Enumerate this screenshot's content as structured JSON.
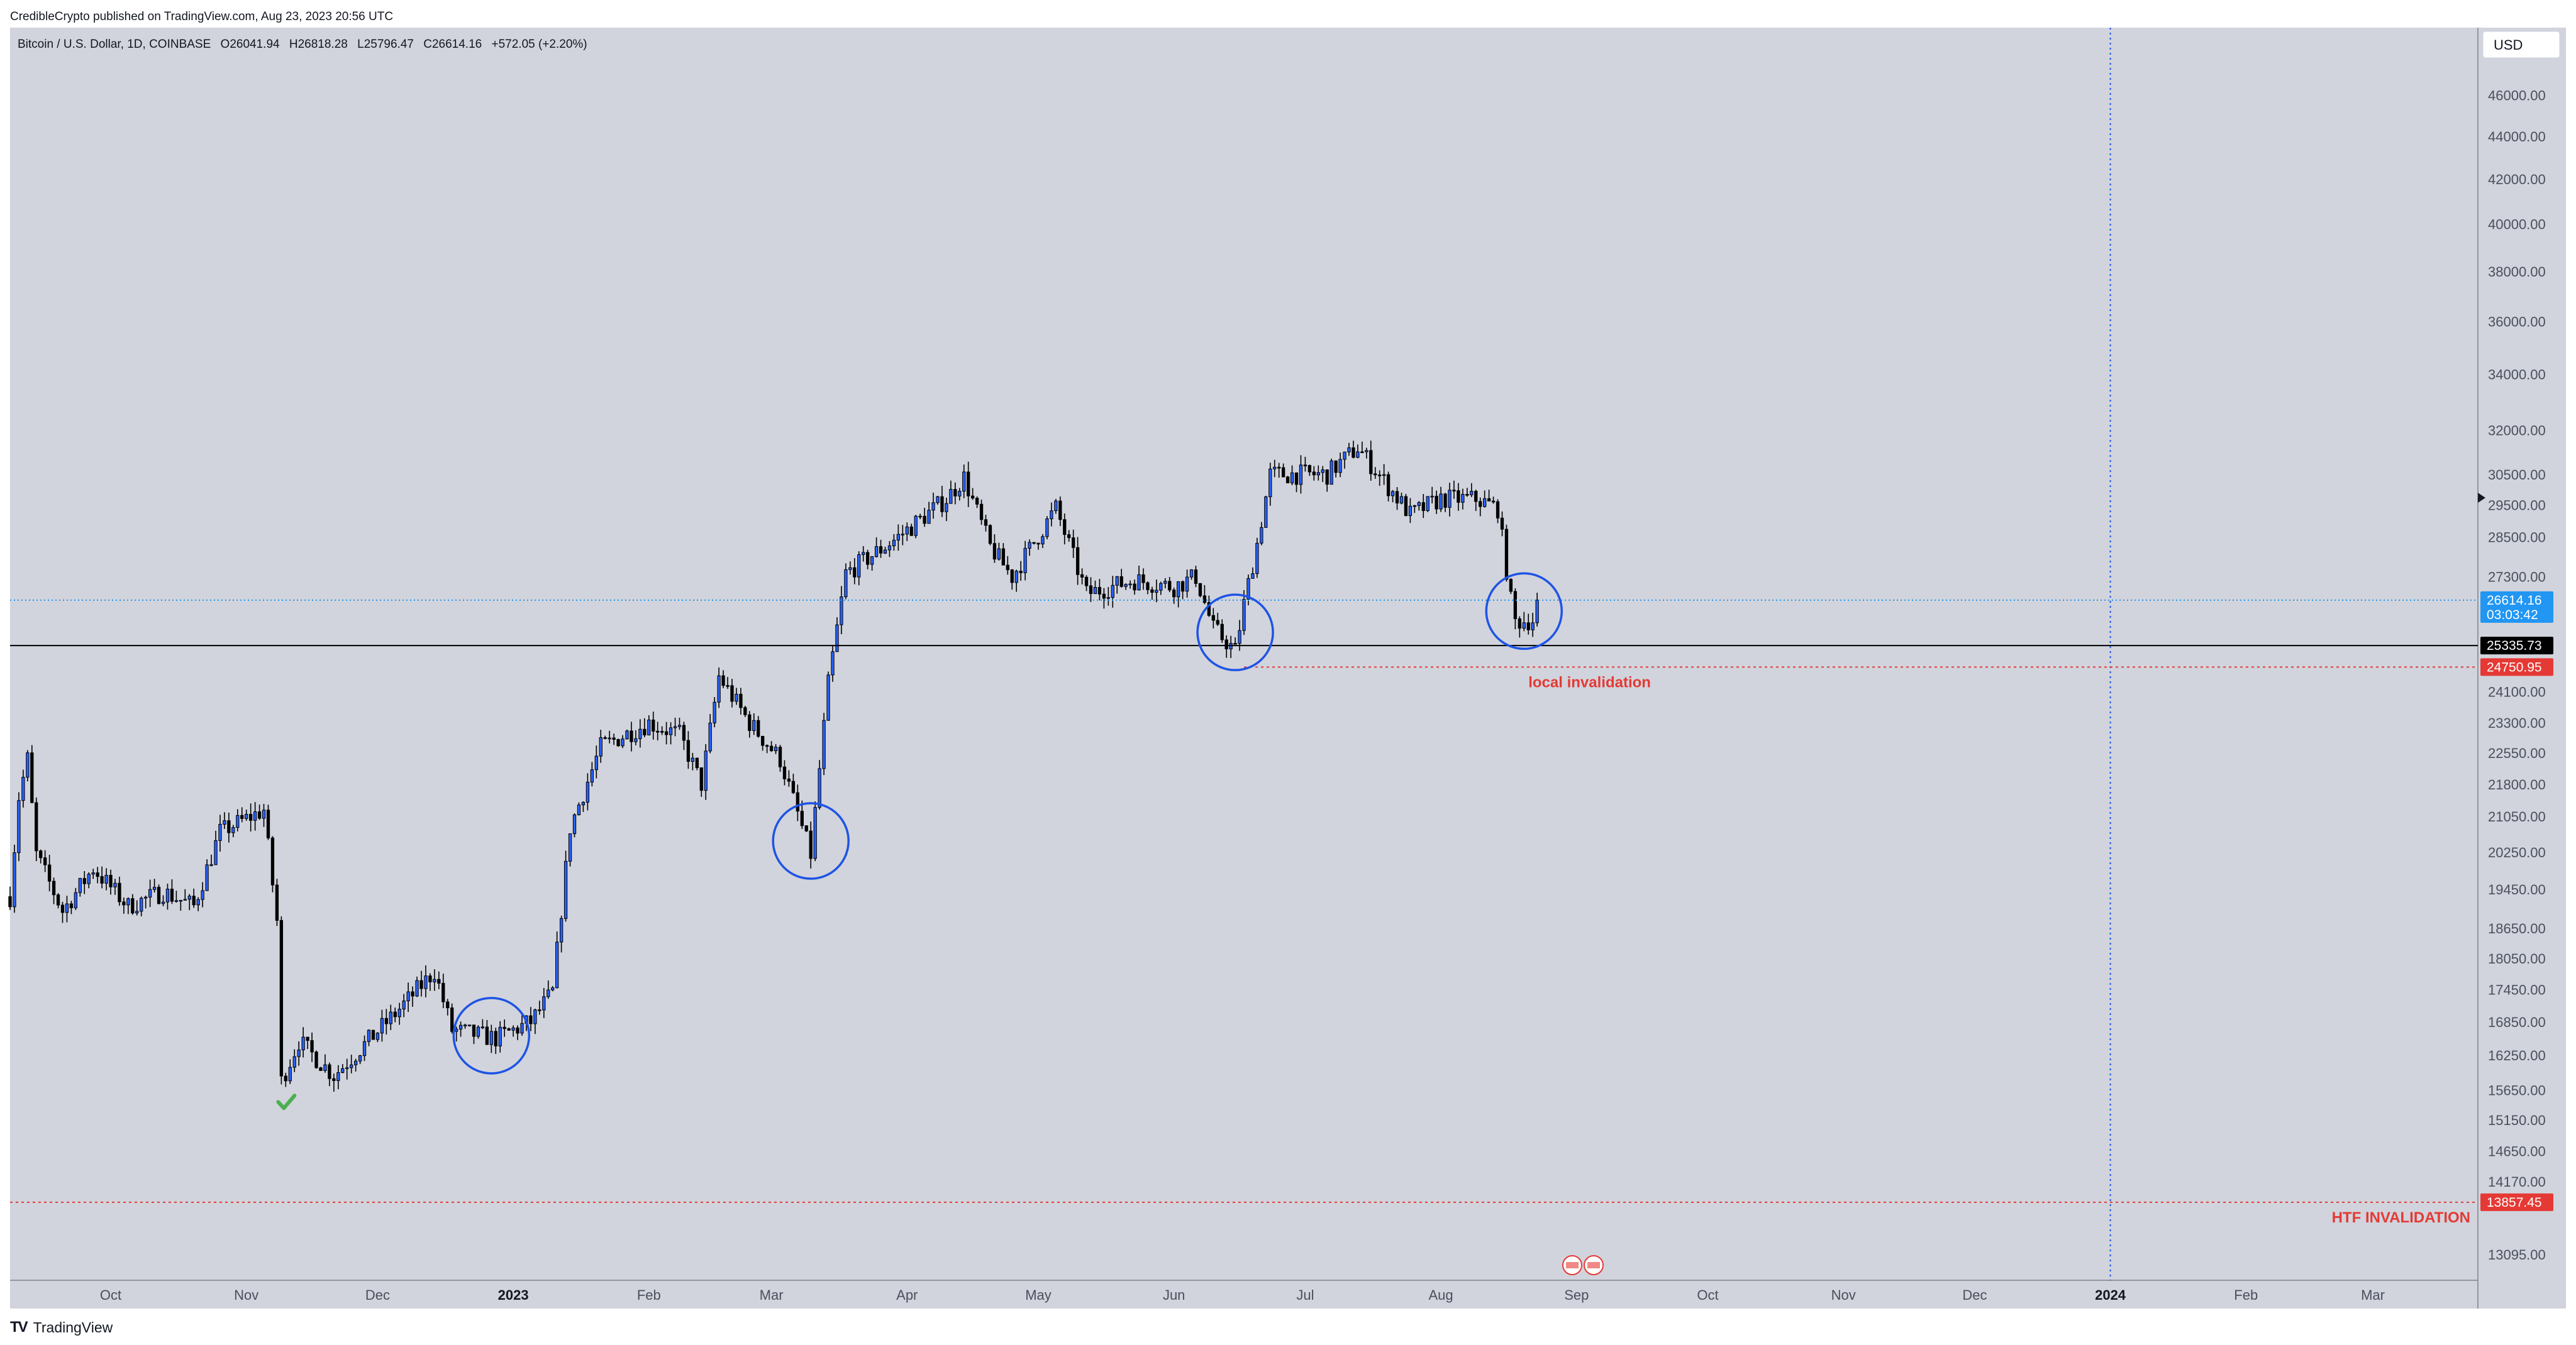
{
  "header": {
    "publisher_line": "CredibleCrypto published on TradingView.com, Aug 23, 2023 20:56 UTC"
  },
  "legend": {
    "symbol": "Bitcoin / U.S. Dollar, 1D, COINBASE",
    "open_label": "O",
    "open": "26041.94",
    "high_label": "H",
    "high": "26818.28",
    "low_label": "L",
    "low": "25796.47",
    "close_label": "C",
    "close": "26614.16",
    "change": "+572.05 (+2.20%)"
  },
  "currency_button": "USD",
  "footer": {
    "logo": "TV",
    "brand": "TradingView"
  },
  "colors": {
    "background": "#d1d4dc",
    "up_candle": "#2962ff",
    "down_candle": "#000000",
    "circle": "#1e53e5",
    "invalidation": "#e53935",
    "current_price_tag": "#2196f3",
    "support_line": "#000000",
    "checkmark": "#4caf50"
  },
  "chart_data": {
    "type": "candlestick",
    "title": "Bitcoin / U.S. Dollar, 1D, COINBASE",
    "x_range": [
      "2022-09-08",
      "2024-03-25"
    ],
    "ylim": [
      13095,
      47000
    ],
    "y_scale": "log",
    "y_ticks": [
      46000,
      44000,
      42000,
      40000,
      38000,
      36000,
      34000,
      32000,
      30500,
      29500,
      28500,
      27300,
      24100,
      23300,
      22550,
      21800,
      21050,
      20250,
      19450,
      18650,
      18050,
      17450,
      16850,
      16250,
      15650,
      15150,
      14650,
      14170,
      13095
    ],
    "y_tick_labels": [
      "46000.00",
      "44000.00",
      "42000.00",
      "40000.00",
      "38000.00",
      "36000.00",
      "34000.00",
      "32000.00",
      "30500.00",
      "29500.00",
      "28500.00",
      "27300.00",
      "24100.00",
      "23300.00",
      "22550.00",
      "21800.00",
      "21050.00",
      "20250.00",
      "19450.00",
      "18650.00",
      "18050.00",
      "17450.00",
      "16850.00",
      "16250.00",
      "15650.00",
      "15150.00",
      "14650.00",
      "14170.00",
      "13095.00"
    ],
    "x_tick_labels": [
      {
        "date": "2022-10-01",
        "label": "Oct"
      },
      {
        "date": "2022-11-01",
        "label": "Nov"
      },
      {
        "date": "2022-12-01",
        "label": "Dec"
      },
      {
        "date": "2023-01-01",
        "label": "2023",
        "bold": true
      },
      {
        "date": "2023-02-01",
        "label": "Feb"
      },
      {
        "date": "2023-03-01",
        "label": "Mar"
      },
      {
        "date": "2023-04-01",
        "label": "Apr"
      },
      {
        "date": "2023-05-01",
        "label": "May"
      },
      {
        "date": "2023-06-01",
        "label": "Jun"
      },
      {
        "date": "2023-07-01",
        "label": "Jul"
      },
      {
        "date": "2023-08-01",
        "label": "Aug"
      },
      {
        "date": "2023-09-01",
        "label": "Sep"
      },
      {
        "date": "2023-10-01",
        "label": "Oct"
      },
      {
        "date": "2023-11-01",
        "label": "Nov"
      },
      {
        "date": "2023-12-01",
        "label": "Dec"
      },
      {
        "date": "2024-01-01",
        "label": "2024",
        "bold": true
      },
      {
        "date": "2024-02-01",
        "label": "Feb"
      },
      {
        "date": "2024-03-01",
        "label": "Mar"
      }
    ],
    "price_series_close": [
      {
        "date": "2022-09-08",
        "close": 19300
      },
      {
        "date": "2022-09-10",
        "close": 21500
      },
      {
        "date": "2022-09-12",
        "close": 22400
      },
      {
        "date": "2022-09-14",
        "close": 20200
      },
      {
        "date": "2022-09-20",
        "close": 19000
      },
      {
        "date": "2022-09-27",
        "close": 19900
      },
      {
        "date": "2022-10-05",
        "close": 19100
      },
      {
        "date": "2022-10-13",
        "close": 19400
      },
      {
        "date": "2022-10-20",
        "close": 19100
      },
      {
        "date": "2022-10-26",
        "close": 20700
      },
      {
        "date": "2022-11-05",
        "close": 21200
      },
      {
        "date": "2022-11-08",
        "close": 18800
      },
      {
        "date": "2022-11-09",
        "close": 15800
      },
      {
        "date": "2022-11-13",
        "close": 16500
      },
      {
        "date": "2022-11-21",
        "close": 15900
      },
      {
        "date": "2022-12-05",
        "close": 17000
      },
      {
        "date": "2022-12-14",
        "close": 17800
      },
      {
        "date": "2022-12-18",
        "close": 16700
      },
      {
        "date": "2022-12-28",
        "close": 16550
      },
      {
        "date": "2023-01-05",
        "close": 16850
      },
      {
        "date": "2023-01-10",
        "close": 17400
      },
      {
        "date": "2023-01-14",
        "close": 20800
      },
      {
        "date": "2023-01-21",
        "close": 22700
      },
      {
        "date": "2023-02-01",
        "close": 23300
      },
      {
        "date": "2023-02-08",
        "close": 23000
      },
      {
        "date": "2023-02-13",
        "close": 21800
      },
      {
        "date": "2023-02-17",
        "close": 24500
      },
      {
        "date": "2023-02-24",
        "close": 23300
      },
      {
        "date": "2023-03-03",
        "close": 22400
      },
      {
        "date": "2023-03-10",
        "close": 20200
      },
      {
        "date": "2023-03-14",
        "close": 24300
      },
      {
        "date": "2023-03-18",
        "close": 27400
      },
      {
        "date": "2023-03-29",
        "close": 28400
      },
      {
        "date": "2023-04-10",
        "close": 29700
      },
      {
        "date": "2023-04-14",
        "close": 30400
      },
      {
        "date": "2023-04-20",
        "close": 28200
      },
      {
        "date": "2023-04-25",
        "close": 27300
      },
      {
        "date": "2023-05-05",
        "close": 29400
      },
      {
        "date": "2023-05-12",
        "close": 26800
      },
      {
        "date": "2023-05-23",
        "close": 27200
      },
      {
        "date": "2023-06-01",
        "close": 27000
      },
      {
        "date": "2023-06-06",
        "close": 27300
      },
      {
        "date": "2023-06-10",
        "close": 25800
      },
      {
        "date": "2023-06-15",
        "close": 25200
      },
      {
        "date": "2023-06-17",
        "close": 26500
      },
      {
        "date": "2023-06-20",
        "close": 28300
      },
      {
        "date": "2023-06-23",
        "close": 30500
      },
      {
        "date": "2023-07-06",
        "close": 30500
      },
      {
        "date": "2023-07-13",
        "close": 31400
      },
      {
        "date": "2023-07-25",
        "close": 29200
      },
      {
        "date": "2023-08-01",
        "close": 29700
      },
      {
        "date": "2023-08-09",
        "close": 29700
      },
      {
        "date": "2023-08-14",
        "close": 29400
      },
      {
        "date": "2023-08-17",
        "close": 26600
      },
      {
        "date": "2023-08-18",
        "close": 26000
      },
      {
        "date": "2023-08-22",
        "close": 26042
      },
      {
        "date": "2023-08-23",
        "close": 26614
      }
    ],
    "horizontal_levels": [
      {
        "price": 26614.16,
        "label": "26614.16",
        "sublabel": "03:03:42",
        "style": "dotted",
        "color": "#2196f3"
      },
      {
        "price": 25335.73,
        "label": "25335.73",
        "style": "solid",
        "color": "#000000"
      },
      {
        "price": 24750.95,
        "label": "24750.95",
        "style": "dashed",
        "color": "#e53935"
      },
      {
        "price": 13857.45,
        "label": "13857.45",
        "style": "dashed",
        "color": "#e53935"
      }
    ],
    "vertical_line": {
      "date": "2024-01-01",
      "style": "dotted",
      "color": "#1e53e5"
    },
    "annotations": {
      "local_invalidation": "local invalidation",
      "htf_invalidation": "HTF INVALIDATION"
    },
    "circles": [
      {
        "date": "2022-12-27",
        "price": 16600
      },
      {
        "date": "2023-03-10",
        "price": 20500
      },
      {
        "date": "2023-06-15",
        "price": 25700
      },
      {
        "date": "2023-08-20",
        "price": 26300
      }
    ],
    "checkmark": {
      "date": "2022-11-10",
      "price": 15450
    }
  }
}
